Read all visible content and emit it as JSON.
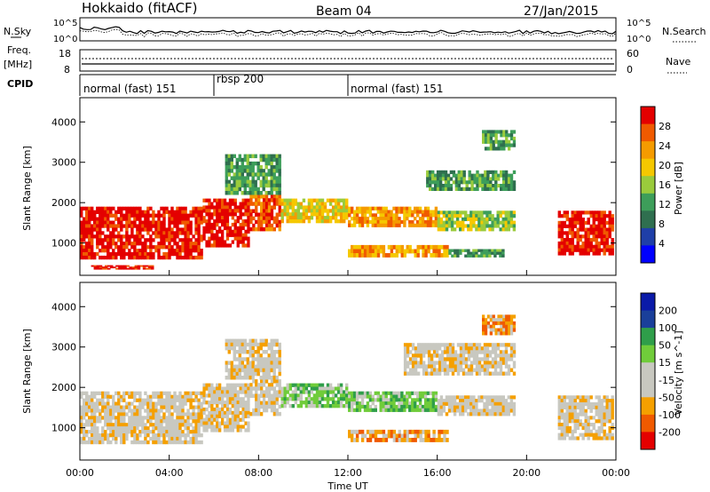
{
  "header": {
    "title": "Hokkaido (fitACF)",
    "beam": "Beam 04",
    "date": "27/Jan/2015"
  },
  "noise_panel": {
    "left_label": "N.Sky",
    "right_label": "N.Search",
    "left_ticks": [
      "10^5",
      "10^0"
    ],
    "right_ticks": [
      "10^5",
      "10^0"
    ]
  },
  "freq_panel": {
    "left_label_1": "Freq.",
    "left_label_2": "[MHz]",
    "left_ticks": [
      "18",
      "8"
    ],
    "right_label": "Nave",
    "right_ticks": [
      "60",
      "0"
    ]
  },
  "cpid_panel": {
    "label": "CPID",
    "segments": [
      {
        "label": "normal (fast) 151",
        "start_hour": 0,
        "end_hour": 6
      },
      {
        "label": "rbsp 200",
        "start_hour": 6,
        "end_hour": 12
      },
      {
        "label": "normal (fast) 151",
        "start_hour": 12,
        "end_hour": 24
      }
    ]
  },
  "colors": {
    "power_scale": [
      "#0000ff",
      "#1f3fa8",
      "#2f6f4f",
      "#3d9e5a",
      "#9acb3c",
      "#f5c800",
      "#f59b00",
      "#f05a00",
      "#e40000"
    ],
    "velocity_scale": [
      "#e40000",
      "#f05a00",
      "#f5a000",
      "#c8c8c0",
      "#c8c8c0",
      "#70cc3a",
      "#2f9e4a",
      "#1a3f9a",
      "#0a1aa8"
    ]
  },
  "chart_data": {
    "type": "heatmap",
    "xlabel": "Time UT",
    "x_ticks": [
      "00:00",
      "04:00",
      "08:00",
      "12:00",
      "16:00",
      "20:00",
      "00:00"
    ],
    "xlim_hours": [
      0,
      24
    ],
    "panels": [
      {
        "name": "power",
        "ylabel": "Slant Range [km]",
        "ylim": [
          200,
          4600
        ],
        "y_ticks": [
          1000,
          2000,
          3000,
          4000
        ],
        "colorbar_label": "Power [dB]",
        "colorbar_ticks": [
          "28",
          "24",
          "20",
          "16",
          "12",
          "8",
          "4"
        ],
        "bands": [
          {
            "t0": 0.0,
            "t1": 5.5,
            "r0": 600,
            "r1": 1900,
            "level": 8
          },
          {
            "t0": 5.5,
            "t1": 7.6,
            "r0": 900,
            "r1": 2100,
            "level": 8
          },
          {
            "t0": 7.6,
            "t1": 9.0,
            "r0": 1300,
            "r1": 2200,
            "level": 7
          },
          {
            "t0": 9.0,
            "t1": 12.0,
            "r0": 1500,
            "r1": 2100,
            "level": 5
          },
          {
            "t0": 12.0,
            "t1": 16.0,
            "r0": 1400,
            "r1": 1900,
            "level": 6
          },
          {
            "t0": 16.0,
            "t1": 19.5,
            "r0": 1300,
            "r1": 1800,
            "level": 4
          },
          {
            "t0": 12.0,
            "t1": 16.5,
            "r0": 650,
            "r1": 950,
            "level": 6
          },
          {
            "t0": 16.5,
            "t1": 19.0,
            "r0": 650,
            "r1": 850,
            "level": 3
          },
          {
            "t0": 21.4,
            "t1": 23.9,
            "r0": 700,
            "r1": 1800,
            "level": 8
          },
          {
            "t0": 15.5,
            "t1": 19.5,
            "r0": 2300,
            "r1": 2800,
            "level": 3
          },
          {
            "t0": 18.0,
            "t1": 19.5,
            "r0": 3300,
            "r1": 3800,
            "level": 3
          },
          {
            "t0": 0.5,
            "t1": 3.3,
            "r0": 350,
            "r1": 450,
            "level": 8
          },
          {
            "t0": 6.5,
            "t1": 9.0,
            "r0": 2200,
            "r1": 3200,
            "level": 3
          }
        ]
      },
      {
        "name": "velocity",
        "ylabel": "Slant Range [km]",
        "ylim": [
          200,
          4600
        ],
        "y_ticks": [
          1000,
          2000,
          3000,
          4000
        ],
        "colorbar_label": "Velocity [m s^-1]",
        "colorbar_ticks": [
          "200",
          "100",
          "50",
          "15",
          "-15",
          "-50",
          "-100",
          "-200"
        ],
        "bands": [
          {
            "t0": 0.0,
            "t1": 5.5,
            "r0": 600,
            "r1": 1900,
            "level": 3
          },
          {
            "t0": 5.5,
            "t1": 7.6,
            "r0": 900,
            "r1": 2100,
            "level": 3
          },
          {
            "t0": 7.6,
            "t1": 9.0,
            "r0": 1300,
            "r1": 2200,
            "level": 3
          },
          {
            "t0": 9.0,
            "t1": 12.0,
            "r0": 1500,
            "r1": 2100,
            "level": 5
          },
          {
            "t0": 12.0,
            "t1": 16.0,
            "r0": 1400,
            "r1": 1900,
            "level": 5
          },
          {
            "t0": 16.0,
            "t1": 19.5,
            "r0": 1300,
            "r1": 1800,
            "level": 3
          },
          {
            "t0": 12.0,
            "t1": 16.5,
            "r0": 650,
            "r1": 950,
            "level": 2
          },
          {
            "t0": 21.4,
            "t1": 23.9,
            "r0": 700,
            "r1": 1800,
            "level": 3
          },
          {
            "t0": 14.5,
            "t1": 19.5,
            "r0": 2300,
            "r1": 3100,
            "level": 3
          },
          {
            "t0": 6.5,
            "t1": 9.0,
            "r0": 2200,
            "r1": 3200,
            "level": 3
          },
          {
            "t0": 18.0,
            "t1": 19.5,
            "r0": 3300,
            "r1": 3800,
            "level": 2
          }
        ]
      }
    ]
  }
}
